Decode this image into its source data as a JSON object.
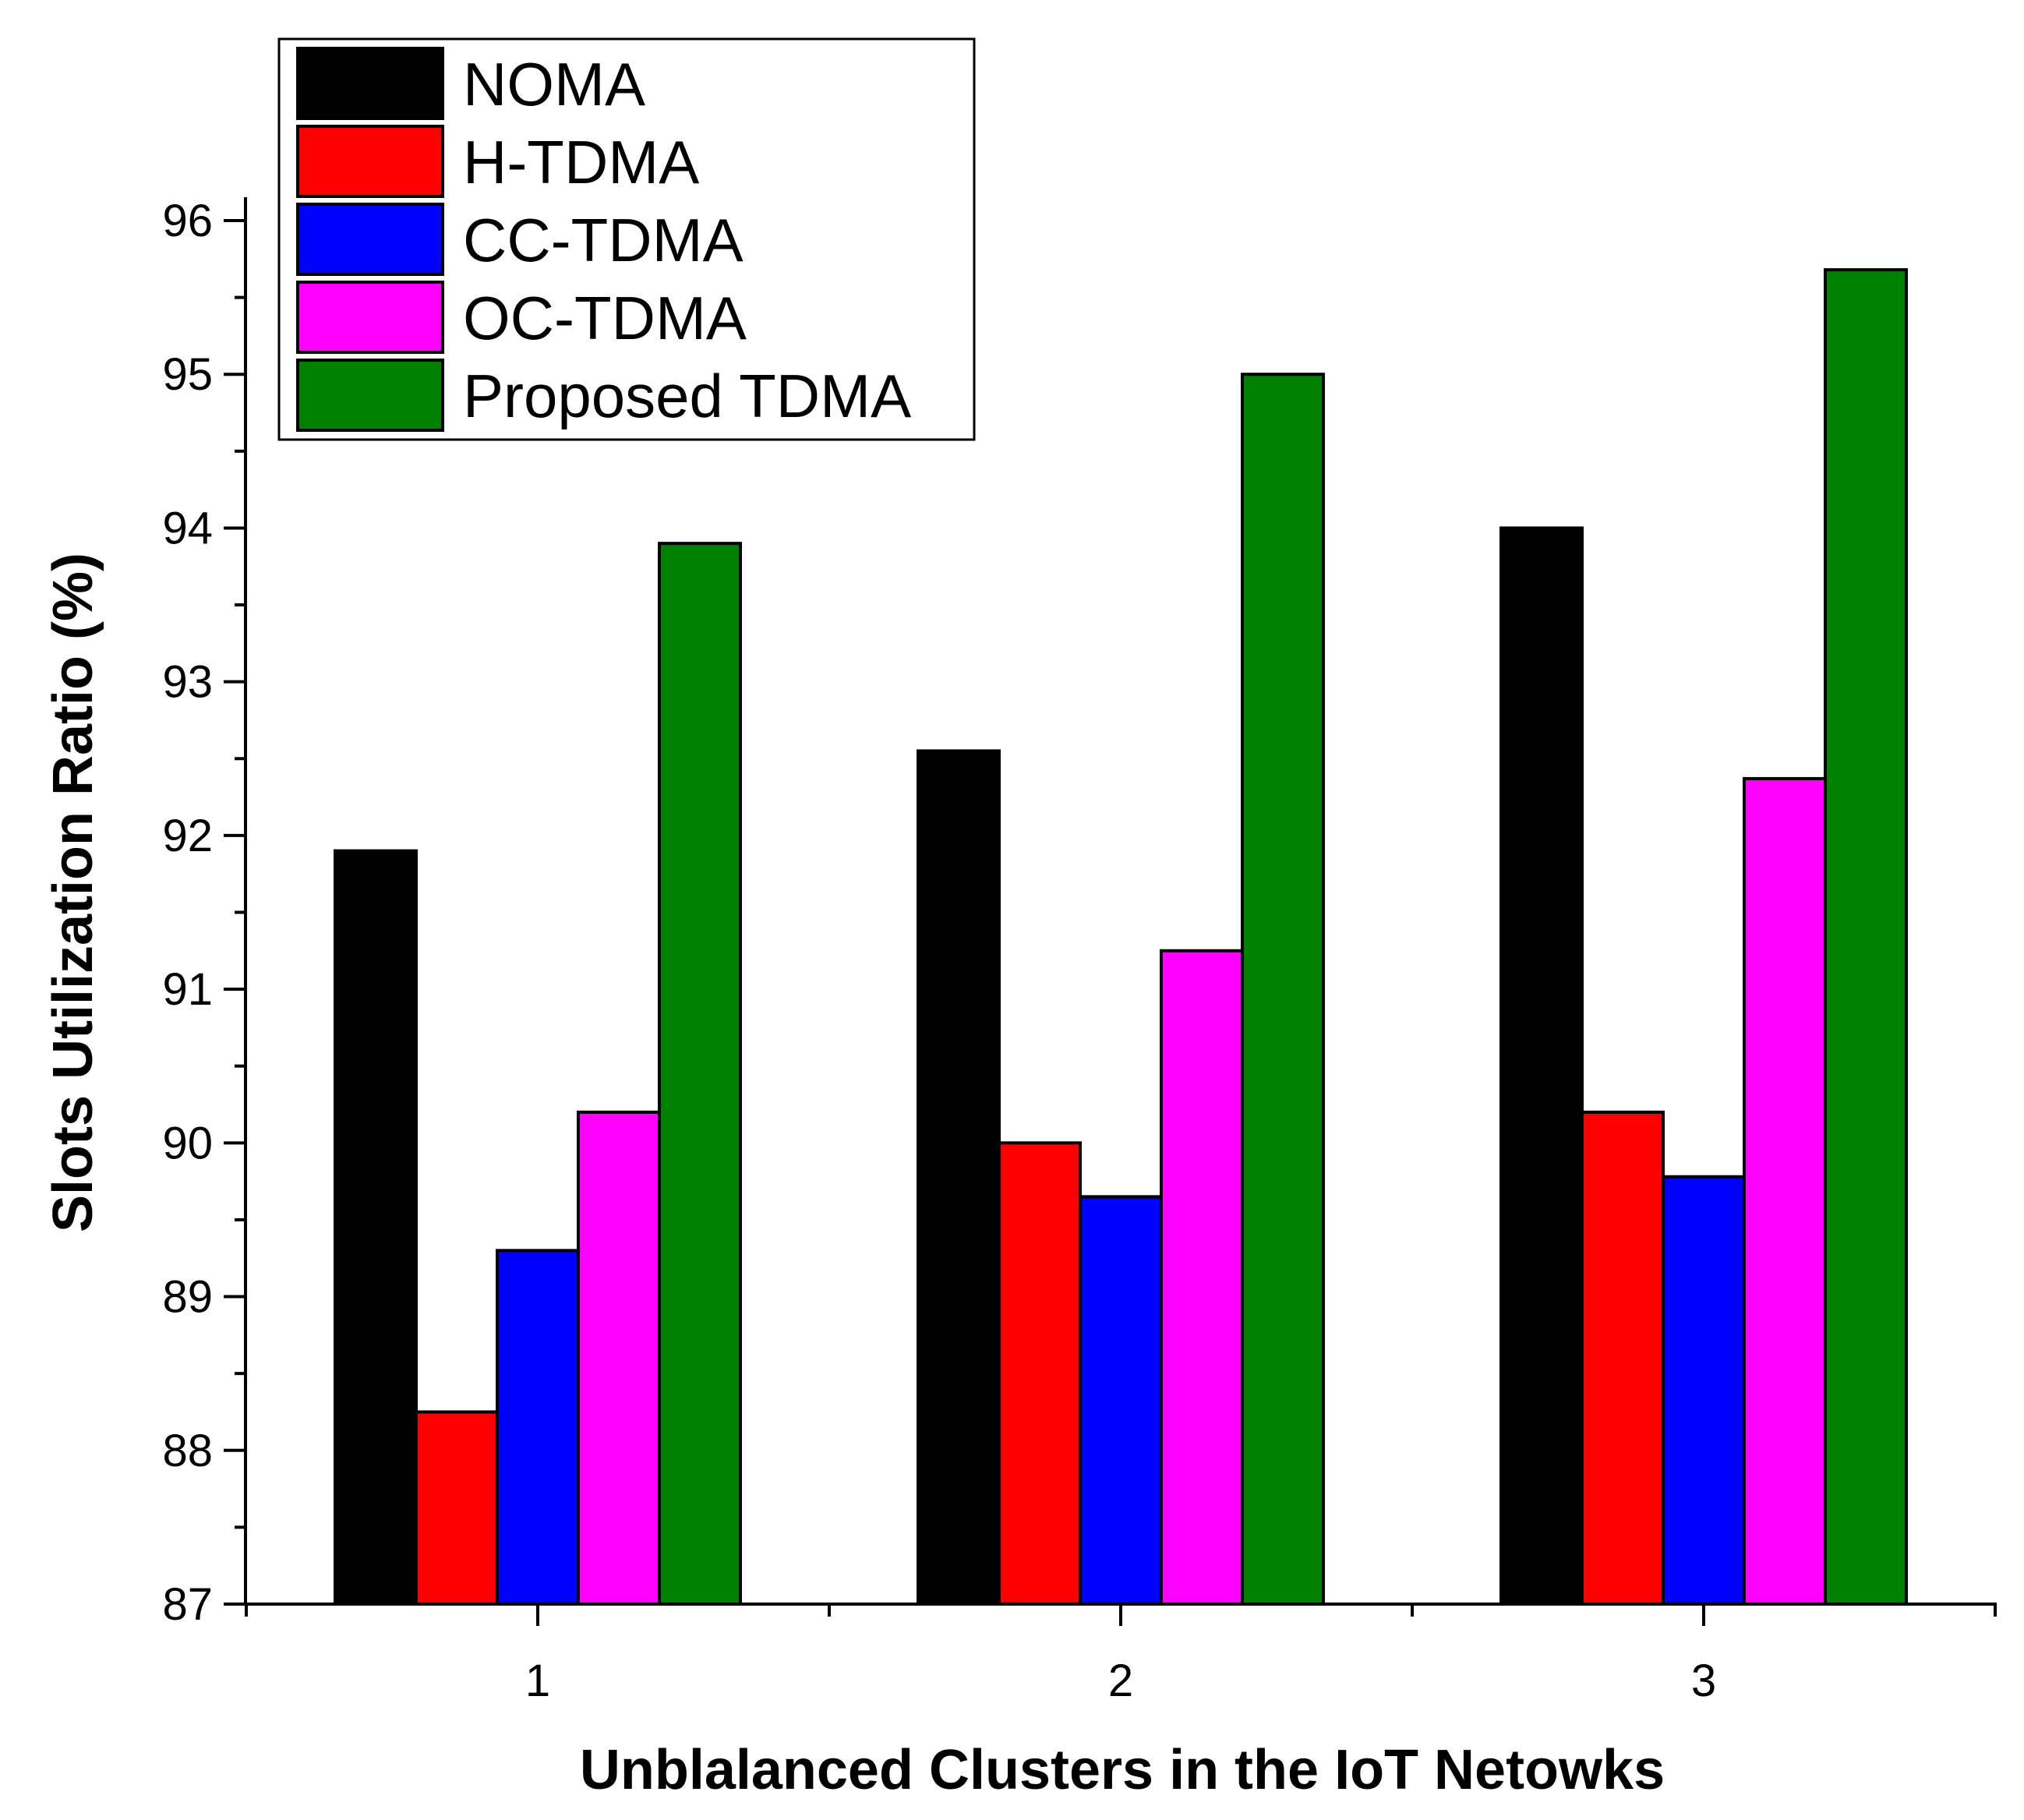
{
  "chart_data": {
    "type": "bar",
    "title": "",
    "xlabel": "Unblalanced Clusters in the IoT Netowks",
    "ylabel": "Slots Utilization Ratio (%)",
    "categories": [
      "1",
      "2",
      "3"
    ],
    "ylim": [
      87,
      96
    ],
    "yticks": [
      "87",
      "88",
      "89",
      "90",
      "91",
      "92",
      "93",
      "94",
      "95",
      "96"
    ],
    "legend_position": "top-left",
    "series": [
      {
        "name": "NOMA",
        "color": "#000000",
        "values": [
          91.9,
          92.55,
          94.0
        ]
      },
      {
        "name": "H-TDMA",
        "color": "#ff0000",
        "values": [
          88.25,
          90.0,
          90.2
        ]
      },
      {
        "name": "CC-TDMA",
        "color": "#0000ff",
        "values": [
          89.3,
          89.65,
          89.78
        ]
      },
      {
        "name": "OC-TDMA",
        "color": "#ff00ff",
        "values": [
          90.2,
          91.25,
          92.37
        ]
      },
      {
        "name": "Proposed TDMA",
        "color": "#008000",
        "values": [
          93.9,
          95.0,
          95.68
        ]
      }
    ]
  }
}
